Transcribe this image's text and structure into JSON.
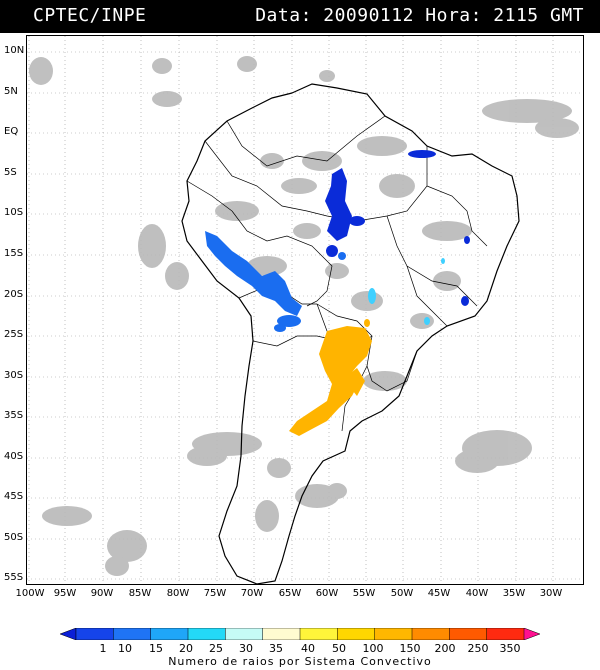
{
  "header": {
    "agency": "CPTEC/INPE",
    "timestamp": "Data: 20090112 Hora: 2115 GMT"
  },
  "map": {
    "lat_labels": [
      "10N",
      "5N",
      "EQ",
      "5S",
      "10S",
      "15S",
      "20S",
      "25S",
      "30S",
      "35S",
      "40S",
      "45S",
      "50S",
      "55S"
    ],
    "lon_labels": [
      "100W",
      "95W",
      "90W",
      "85W",
      "80W",
      "75W",
      "70W",
      "65W",
      "60W",
      "55W",
      "50W",
      "45W",
      "40W",
      "35W",
      "30W"
    ],
    "colors": {
      "cloud": "#b9b9b9",
      "coastline": "#000000",
      "grid": "#9a9a9a",
      "lightning_low": "#0a2bd8",
      "lightning_mid": "#1a6df0",
      "lightning_cyan": "#3fd0ff",
      "lightning_high": "#ffb400"
    }
  },
  "legend": {
    "values": [
      "1",
      "10",
      "15",
      "20",
      "25",
      "30",
      "35",
      "40",
      "50",
      "100",
      "150",
      "200",
      "250",
      "350"
    ],
    "colors": [
      "#0b1fd6",
      "#1544ea",
      "#1f74f5",
      "#1fa6f8",
      "#23d9f7",
      "#c6fbf6",
      "#fffbd0",
      "#fff53a",
      "#ffd700",
      "#ffb700",
      "#ff8b00",
      "#ff5a00",
      "#ff2a10",
      "#ff1090"
    ],
    "caption": "Numero de raios por Sistema Convectivo"
  }
}
